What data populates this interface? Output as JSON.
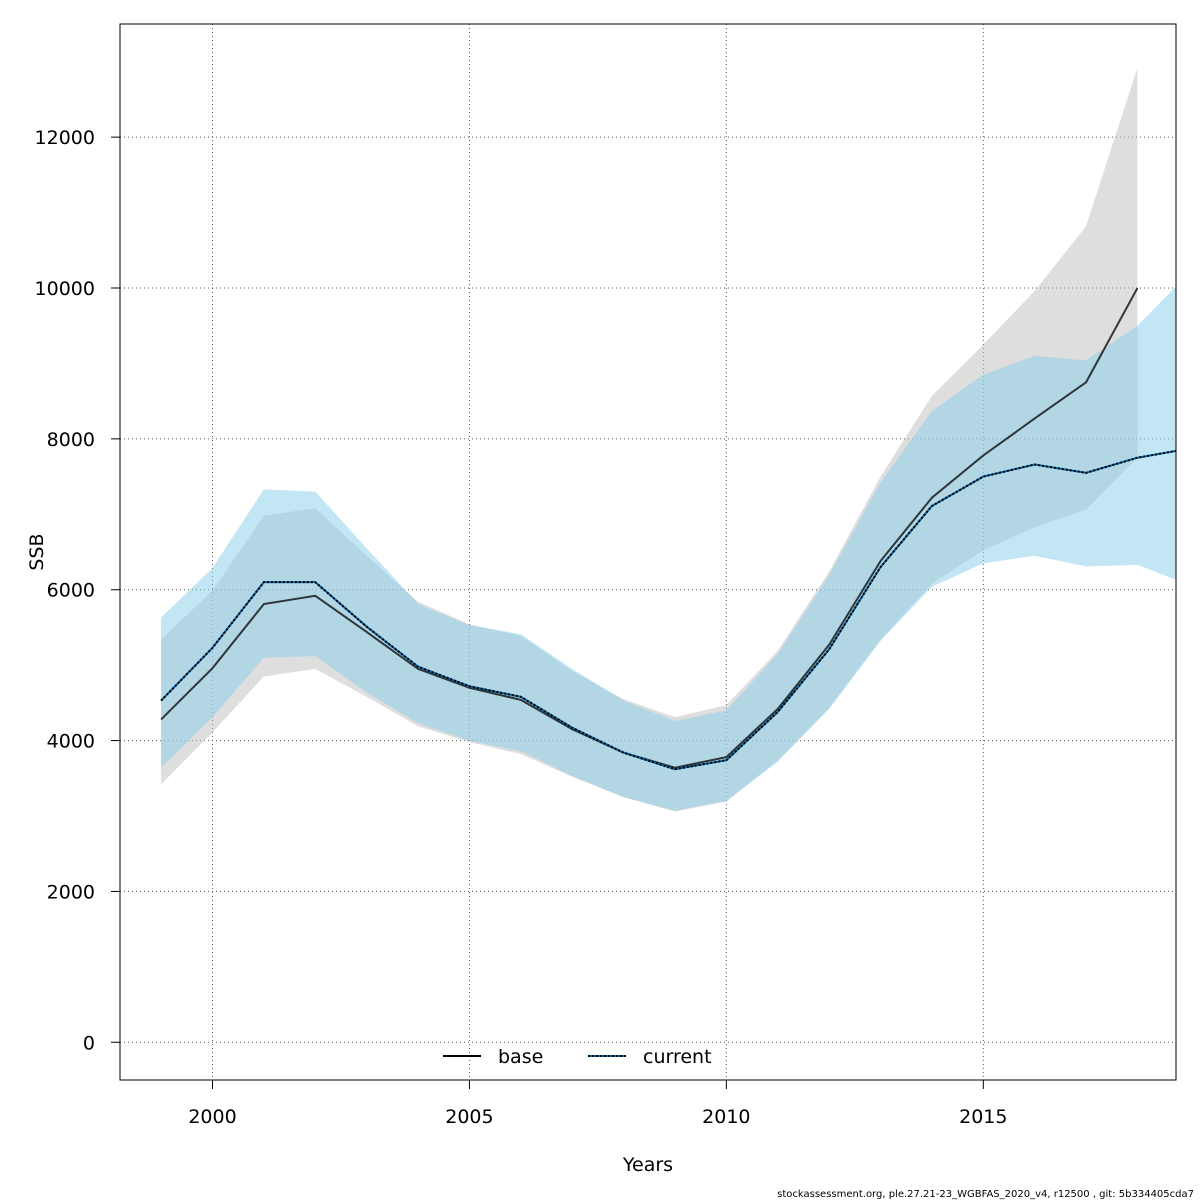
{
  "chart_data": {
    "type": "line",
    "xlabel": "Years",
    "ylabel": "SSB",
    "xlim": [
      1998.2,
      2018.75
    ],
    "ylim": [
      -500,
      13500
    ],
    "x_ticks": [
      2000,
      2005,
      2010,
      2015
    ],
    "x_tick_labels": [
      "2000",
      "2005",
      "2010",
      "2015"
    ],
    "y_ticks": [
      0,
      2000,
      4000,
      6000,
      8000,
      10000,
      12000
    ],
    "y_tick_labels": [
      "0",
      "2000",
      "4000",
      "6000",
      "8000",
      "10000",
      "12000"
    ],
    "grid": true,
    "legend_position": "bottom",
    "series": [
      {
        "name": "base",
        "line_color": "#000000",
        "band_color": "#bebebe",
        "line_style": "solid",
        "x": [
          1999,
          2000,
          2001,
          2002,
          2003,
          2004,
          2005,
          2006,
          2007,
          2008,
          2009,
          2010,
          2011,
          2012,
          2013,
          2014,
          2015,
          2016,
          2017,
          2018
        ],
        "values": [
          4280,
          4960,
          5810,
          5920,
          5440,
          4950,
          4700,
          4540,
          4150,
          3840,
          3640,
          3780,
          4420,
          5270,
          6380,
          7220,
          7780,
          8270,
          8750,
          10000
        ],
        "lower": [
          3420,
          4110,
          4850,
          4950,
          4580,
          4190,
          3980,
          3820,
          3520,
          3250,
          3060,
          3190,
          3740,
          4430,
          5340,
          6080,
          6520,
          6830,
          7060,
          7750
        ],
        "upper": [
          5340,
          5990,
          6980,
          7080,
          6450,
          5840,
          5540,
          5390,
          4920,
          4550,
          4310,
          4470,
          5190,
          6240,
          7500,
          8570,
          9250,
          9960,
          10820,
          12920
        ]
      },
      {
        "name": "current",
        "line_color": "#0066aa",
        "band_color": "#87ceeb",
        "line_style": "dotted",
        "x": [
          1999,
          2000,
          2001,
          2002,
          2003,
          2004,
          2005,
          2006,
          2007,
          2008,
          2009,
          2010,
          2011,
          2012,
          2013,
          2014,
          2015,
          2016,
          2017,
          2018,
          2018.75
        ],
        "values": [
          4530,
          5230,
          6100,
          6100,
          5510,
          4980,
          4720,
          4580,
          4170,
          3840,
          3620,
          3740,
          4380,
          5210,
          6300,
          7110,
          7500,
          7660,
          7550,
          7750,
          7840
        ],
        "lower": [
          3640,
          4310,
          5100,
          5120,
          4640,
          4230,
          4000,
          3860,
          3530,
          3250,
          3070,
          3200,
          3720,
          4420,
          5320,
          6040,
          6350,
          6450,
          6310,
          6330,
          6130
        ],
        "upper": [
          5630,
          6290,
          7330,
          7300,
          6550,
          5810,
          5530,
          5410,
          4950,
          4530,
          4260,
          4400,
          5150,
          6190,
          7420,
          8370,
          8850,
          9100,
          9040,
          9500,
          10020
        ]
      }
    ]
  },
  "footer": "stockassessment.org, ple.27.21-23_WGBFAS_2020_v4, r12500 , git: 5b334405cda7"
}
